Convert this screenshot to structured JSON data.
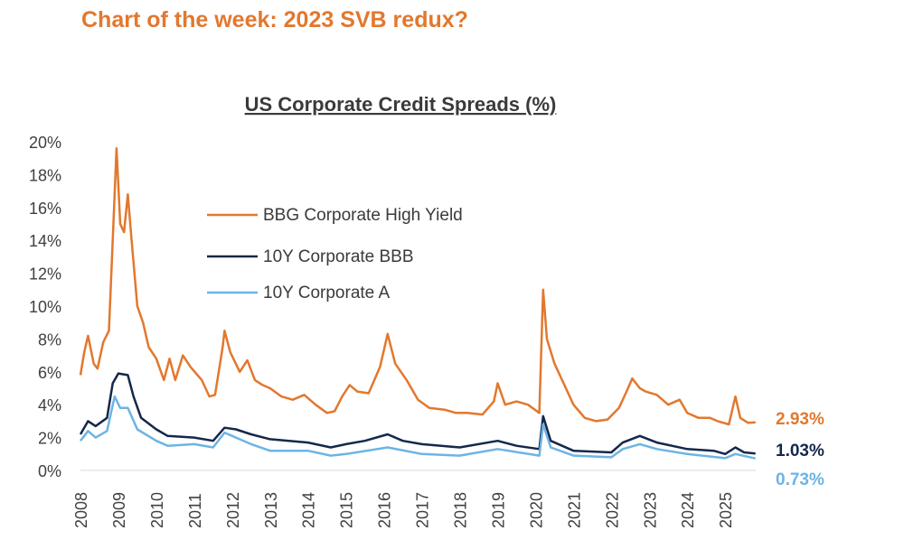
{
  "header": {
    "title": "Chart of the week: 2023 SVB redux?"
  },
  "chart_data": {
    "type": "line",
    "title": "US Corporate Credit Spreads (%)",
    "xlabel": "",
    "ylabel": "",
    "xlim": [
      2008,
      2025.85
    ],
    "ylim": [
      0,
      20
    ],
    "yticks": [
      "0%",
      "2%",
      "4%",
      "6%",
      "8%",
      "10%",
      "12%",
      "14%",
      "16%",
      "18%",
      "20%"
    ],
    "xticks": [
      "2008",
      "2009",
      "2010",
      "2011",
      "2012",
      "2013",
      "2014",
      "2015",
      "2016",
      "2017",
      "2018",
      "2019",
      "2020",
      "2021",
      "2022",
      "2023",
      "2024",
      "2025"
    ],
    "legend_position": "upper-center",
    "series": [
      {
        "name": "BBG Corporate High Yield",
        "color": "#E2782E",
        "end_label": "2.93%",
        "x": [
          2008,
          2008.1,
          2008.2,
          2008.35,
          2008.45,
          2008.6,
          2008.75,
          2008.85,
          2008.95,
          2009.05,
          2009.15,
          2009.25,
          2009.35,
          2009.5,
          2009.65,
          2009.8,
          2010,
          2010.2,
          2010.35,
          2010.5,
          2010.7,
          2010.9,
          2011.2,
          2011.4,
          2011.55,
          2011.75,
          2011.8,
          2011.95,
          2012.2,
          2012.4,
          2012.6,
          2012.8,
          2013,
          2013.3,
          2013.6,
          2013.9,
          2014.2,
          2014.5,
          2014.7,
          2014.9,
          2015.1,
          2015.3,
          2015.6,
          2015.9,
          2016.1,
          2016.3,
          2016.6,
          2016.9,
          2017.2,
          2017.6,
          2017.9,
          2018.2,
          2018.6,
          2018.9,
          2019,
          2019.2,
          2019.5,
          2019.8,
          2020.1,
          2020.2,
          2020.3,
          2020.5,
          2020.8,
          2021,
          2021.3,
          2021.6,
          2021.9,
          2022.2,
          2022.4,
          2022.55,
          2022.75,
          2022.9,
          2023.2,
          2023.5,
          2023.8,
          2024,
          2024.3,
          2024.6,
          2024.8,
          2025.1,
          2025.27,
          2025.4,
          2025.6,
          2025.8
        ],
        "y": [
          5.8,
          7.2,
          8.2,
          6.5,
          6.2,
          7.8,
          8.5,
          14,
          19.6,
          15,
          14.5,
          16.8,
          14,
          10,
          9,
          7.5,
          6.8,
          5.5,
          6.8,
          5.5,
          7,
          6.3,
          5.5,
          4.5,
          4.6,
          7.5,
          8.5,
          7.2,
          6,
          6.7,
          5.5,
          5.2,
          5,
          4.5,
          4.3,
          4.6,
          4,
          3.5,
          3.6,
          4.5,
          5.2,
          4.8,
          4.7,
          6.3,
          8.3,
          6.5,
          5.5,
          4.3,
          3.8,
          3.7,
          3.5,
          3.5,
          3.4,
          4.2,
          5.3,
          4,
          4.2,
          4,
          3.5,
          11,
          8,
          6.5,
          5,
          4,
          3.2,
          3,
          3.1,
          3.8,
          4.8,
          5.6,
          5,
          4.8,
          4.6,
          4,
          4.3,
          3.5,
          3.2,
          3.2,
          3,
          2.8,
          4.5,
          3.2,
          2.9,
          2.93
        ]
      },
      {
        "name": "10Y Corporate BBB",
        "color": "#14284B",
        "end_label": "1.03%",
        "x": [
          2008,
          2008.2,
          2008.4,
          2008.7,
          2008.85,
          2009,
          2009.25,
          2009.4,
          2009.6,
          2010,
          2010.3,
          2011,
          2011.5,
          2011.8,
          2012.1,
          2012.5,
          2013,
          2014,
          2014.6,
          2015,
          2015.5,
          2016.1,
          2016.5,
          2017,
          2018,
          2019,
          2019.5,
          2020.1,
          2020.2,
          2020.4,
          2021,
          2022,
          2022.3,
          2022.75,
          2023.2,
          2024,
          2024.7,
          2025,
          2025.27,
          2025.5,
          2025.8
        ],
        "y": [
          2.2,
          3,
          2.7,
          3.2,
          5.3,
          5.9,
          5.8,
          4.5,
          3.2,
          2.5,
          2.1,
          2,
          1.8,
          2.6,
          2.5,
          2.2,
          1.9,
          1.7,
          1.4,
          1.6,
          1.8,
          2.2,
          1.8,
          1.6,
          1.4,
          1.8,
          1.5,
          1.3,
          3.3,
          1.8,
          1.2,
          1.1,
          1.7,
          2.1,
          1.7,
          1.3,
          1.2,
          1,
          1.4,
          1.1,
          1.03
        ]
      },
      {
        "name": "10Y Corporate A",
        "color": "#6CB4E4",
        "end_label": "0.73%",
        "x": [
          2008,
          2008.2,
          2008.4,
          2008.7,
          2008.9,
          2009.05,
          2009.25,
          2009.5,
          2010,
          2010.3,
          2011,
          2011.5,
          2011.8,
          2012.1,
          2012.5,
          2013,
          2014,
          2014.6,
          2015,
          2016.1,
          2017,
          2018,
          2019,
          2020.1,
          2020.2,
          2020.4,
          2021,
          2022,
          2022.3,
          2022.75,
          2023.2,
          2024,
          2025,
          2025.27,
          2025.8
        ],
        "y": [
          1.8,
          2.4,
          2,
          2.4,
          4.5,
          3.8,
          3.8,
          2.5,
          1.8,
          1.5,
          1.6,
          1.4,
          2.3,
          2,
          1.6,
          1.2,
          1.2,
          0.9,
          1,
          1.4,
          1,
          0.9,
          1.3,
          0.9,
          2.8,
          1.4,
          0.9,
          0.8,
          1.3,
          1.6,
          1.3,
          1,
          0.75,
          1,
          0.73
        ]
      }
    ]
  }
}
